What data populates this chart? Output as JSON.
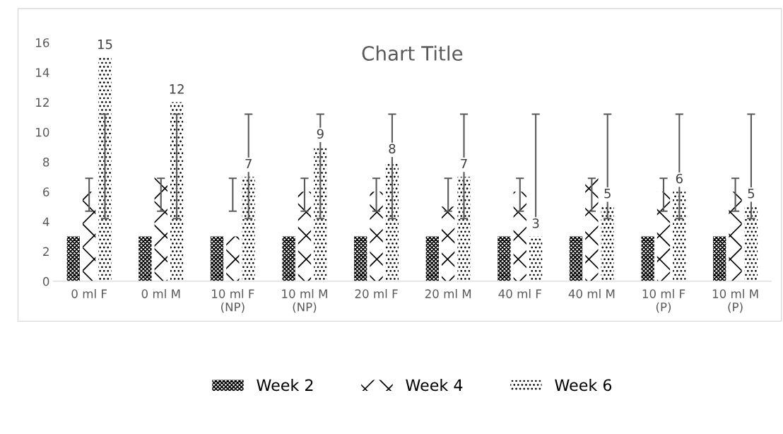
{
  "chart_data": {
    "type": "bar",
    "title": "Chart Title",
    "categories": [
      "0 ml F",
      "0 ml M",
      "10 ml F\n(NP)",
      "10 ml M\n(NP)",
      "20 ml F",
      "20 ml M",
      "40 ml F",
      "40 ml M",
      "10 ml F\n(P)",
      "10 ml M\n(P)"
    ],
    "series": [
      {
        "name": "Week 2",
        "color": "#000000",
        "values": [
          3,
          3,
          3,
          3,
          3,
          3,
          3,
          3,
          3,
          3
        ]
      },
      {
        "name": "Week 4",
        "color": "#000000",
        "values": [
          6,
          7,
          3,
          6,
          6,
          5,
          6,
          7,
          6,
          6
        ],
        "errors": [
          [
            4.7,
            6.9
          ],
          [
            4.7,
            6.9
          ],
          [
            4.7,
            6.9
          ],
          [
            4.7,
            6.9
          ],
          [
            4.7,
            6.9
          ],
          [
            4.7,
            6.9
          ],
          [
            4.7,
            6.9
          ],
          [
            4.7,
            6.9
          ],
          [
            4.7,
            6.9
          ],
          [
            4.7,
            6.9
          ]
        ]
      },
      {
        "name": "Week 6",
        "color": "#000000",
        "values": [
          15,
          12,
          7,
          9,
          8,
          7,
          3,
          5,
          6,
          5
        ],
        "errors": [
          [
            4.2,
            11.2
          ],
          [
            4.2,
            11.2
          ],
          [
            4.2,
            11.2
          ],
          [
            4.2,
            11.2
          ],
          [
            4.2,
            11.2
          ],
          [
            4.2,
            11.2
          ],
          [
            4.2,
            11.2
          ],
          [
            4.2,
            11.2
          ],
          [
            4.2,
            11.2
          ],
          [
            4.2,
            11.2
          ]
        ],
        "value_labels": [
          "15",
          "12",
          "7",
          "9",
          "8",
          "7",
          "3",
          "5",
          "6",
          "5"
        ]
      }
    ],
    "ylim": [
      0,
      16
    ],
    "yticks": [
      0,
      2,
      4,
      6,
      8,
      10,
      12,
      14,
      16
    ],
    "grid": false,
    "legend": "bottom"
  }
}
